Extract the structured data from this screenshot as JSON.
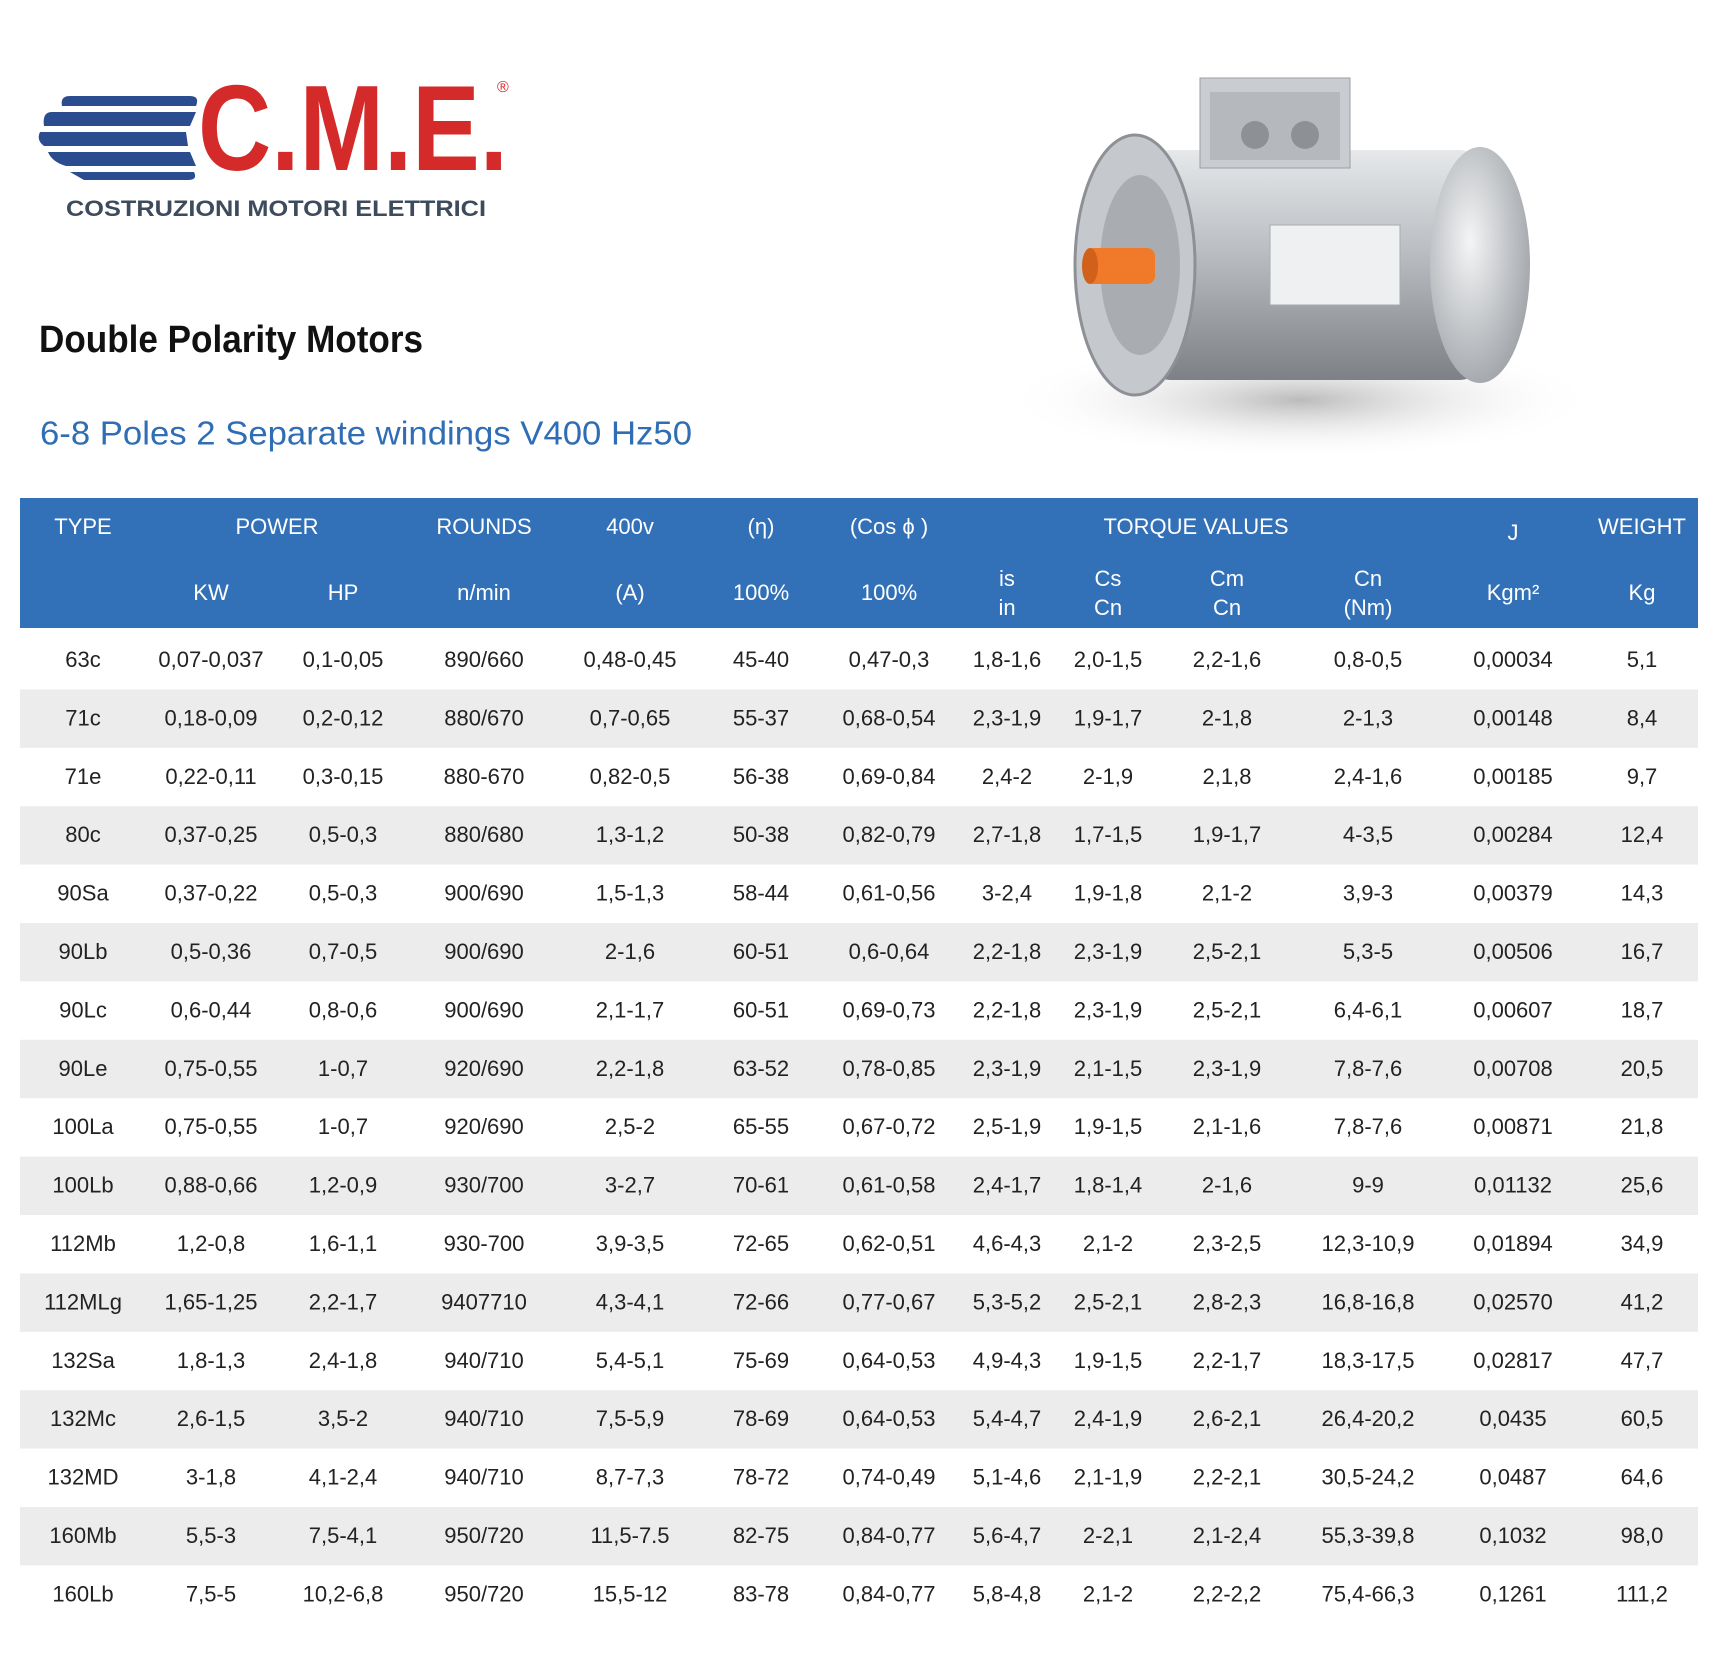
{
  "logo": {
    "brand": "C.M.E.",
    "registered": "®",
    "tagline": "COSTRUZIONI MOTORI ELETTRICI"
  },
  "title": "Double Polarity Motors",
  "subtitle": "6-8 Poles 2 Separate windings V400 Hz50",
  "table": {
    "header_top": [
      "TYPE",
      "POWER",
      "ROUNDS",
      "400v",
      "(η)",
      "(Cos ϕ )",
      "TORQUE VALUES",
      "J",
      "WEIGHT"
    ],
    "header_sub": [
      [
        "KW"
      ],
      [
        "HP"
      ],
      [
        "n/min"
      ],
      [
        "(A)"
      ],
      [
        "100%"
      ],
      [
        "100%"
      ],
      [
        "is",
        "in"
      ],
      [
        "Cs",
        "Cn"
      ],
      [
        "Cm",
        "Cn"
      ],
      [
        "Cn",
        "(Nm)"
      ],
      [
        "Kgm²"
      ],
      [
        "Kg"
      ]
    ],
    "rows": [
      [
        "63c",
        "0,07-0,037",
        "0,1-0,05",
        "890/660",
        "0,48-0,45",
        "45-40",
        "0,47-0,3",
        "1,8-1,6",
        "2,0-1,5",
        "2,2-1,6",
        "0,8-0,5",
        "0,00034",
        "5,1"
      ],
      [
        "71c",
        "0,18-0,09",
        "0,2-0,12",
        "880/670",
        "0,7-0,65",
        "55-37",
        "0,68-0,54",
        "2,3-1,9",
        "1,9-1,7",
        "2-1,8",
        "2-1,3",
        "0,00148",
        "8,4"
      ],
      [
        "71e",
        "0,22-0,11",
        "0,3-0,15",
        "880-670",
        "0,82-0,5",
        "56-38",
        "0,69-0,84",
        "2,4-2",
        "2-1,9",
        "2,1,8",
        "2,4-1,6",
        "0,00185",
        "9,7"
      ],
      [
        "80c",
        "0,37-0,25",
        "0,5-0,3",
        "880/680",
        "1,3-1,2",
        "50-38",
        "0,82-0,79",
        "2,7-1,8",
        "1,7-1,5",
        "1,9-1,7",
        "4-3,5",
        "0,00284",
        "12,4"
      ],
      [
        "90Sa",
        "0,37-0,22",
        "0,5-0,3",
        "900/690",
        "1,5-1,3",
        "58-44",
        "0,61-0,56",
        "3-2,4",
        "1,9-1,8",
        "2,1-2",
        "3,9-3",
        "0,00379",
        "14,3"
      ],
      [
        "90Lb",
        "0,5-0,36",
        "0,7-0,5",
        "900/690",
        "2-1,6",
        "60-51",
        "0,6-0,64",
        "2,2-1,8",
        "2,3-1,9",
        "2,5-2,1",
        "5,3-5",
        "0,00506",
        "16,7"
      ],
      [
        "90Lc",
        "0,6-0,44",
        "0,8-0,6",
        "900/690",
        "2,1-1,7",
        "60-51",
        "0,69-0,73",
        "2,2-1,8",
        "2,3-1,9",
        "2,5-2,1",
        "6,4-6,1",
        "0,00607",
        "18,7"
      ],
      [
        "90Le",
        "0,75-0,55",
        "1-0,7",
        "920/690",
        "2,2-1,8",
        "63-52",
        "0,78-0,85",
        "2,3-1,9",
        "2,1-1,5",
        "2,3-1,9",
        "7,8-7,6",
        "0,00708",
        "20,5"
      ],
      [
        "100La",
        "0,75-0,55",
        "1-0,7",
        "920/690",
        "2,5-2",
        "65-55",
        "0,67-0,72",
        "2,5-1,9",
        "1,9-1,5",
        "2,1-1,6",
        "7,8-7,6",
        "0,00871",
        "21,8"
      ],
      [
        "100Lb",
        "0,88-0,66",
        "1,2-0,9",
        "930/700",
        "3-2,7",
        "70-61",
        "0,61-0,58",
        "2,4-1,7",
        "1,8-1,4",
        "2-1,6",
        "9-9",
        "0,01132",
        "25,6"
      ],
      [
        "112Mb",
        "1,2-0,8",
        "1,6-1,1",
        "930-700",
        "3,9-3,5",
        "72-65",
        "0,62-0,51",
        "4,6-4,3",
        "2,1-2",
        "2,3-2,5",
        "12,3-10,9",
        "0,01894",
        "34,9"
      ],
      [
        "112MLg",
        "1,65-1,25",
        "2,2-1,7",
        "9407710",
        "4,3-4,1",
        "72-66",
        "0,77-0,67",
        "5,3-5,2",
        "2,5-2,1",
        "2,8-2,3",
        "16,8-16,8",
        "0,02570",
        "41,2"
      ],
      [
        "132Sa",
        "1,8-1,3",
        "2,4-1,8",
        "940/710",
        "5,4-5,1",
        "75-69",
        "0,64-0,53",
        "4,9-4,3",
        "1,9-1,5",
        "2,2-1,7",
        "18,3-17,5",
        "0,02817",
        "47,7"
      ],
      [
        "132Mc",
        "2,6-1,5",
        "3,5-2",
        "940/710",
        "7,5-5,9",
        "78-69",
        "0,64-0,53",
        "5,4-4,7",
        "2,4-1,9",
        "2,6-2,1",
        "26,4-20,2",
        "0,0435",
        "60,5"
      ],
      [
        "132MD",
        "3-1,8",
        "4,1-2,4",
        "940/710",
        "8,7-7,3",
        "78-72",
        "0,74-0,49",
        "5,1-4,6",
        "2,1-1,9",
        "2,2-2,1",
        "30,5-24,2",
        "0,0487",
        "64,6"
      ],
      [
        "160Mb",
        "5,5-3",
        "7,5-4,1",
        "950/720",
        "11,5-7.5",
        "82-75",
        "0,84-0,77",
        "5,6-4,7",
        "2-2,1",
        "2,1-2,4",
        "55,3-39,8",
        "0,1032",
        "98,0"
      ],
      [
        "160Lb",
        "7,5-5",
        "10,2-6,8",
        "950/720",
        "15,5-12",
        "83-78",
        "0,84-0,77",
        "5,8-4,8",
        "2,1-2",
        "2,2-2,2",
        "75,4-66,3",
        "0,1261",
        "111,2"
      ]
    ]
  }
}
